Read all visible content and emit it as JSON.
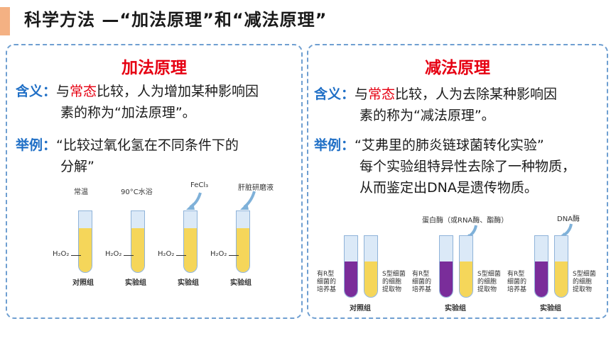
{
  "header": {
    "title": "科学方法 —“加法原理”和“减法原理”"
  },
  "left": {
    "title": "加法原理",
    "meaning_label": "含义：",
    "meaning_pre": "与",
    "meaning_hl": "常态",
    "meaning_post": "比较，人为增加某种影响因",
    "meaning_line2": "素的称为“加法原理”。",
    "example_label": "举例：",
    "example_line1": "“比较过氧化氢在不同条件下的",
    "example_line2": "分解”",
    "figure": {
      "conditions": [
        "常温",
        "90°C水浴",
        "FeCl₃",
        "肝脏研磨液"
      ],
      "reagent": "H₂O₂",
      "groups": [
        "对照组",
        "实验组",
        "实验组",
        "实验组"
      ]
    }
  },
  "right": {
    "title": "减法原理",
    "meaning_label": "含义：",
    "meaning_pre": "与",
    "meaning_hl": "常态",
    "meaning_post": "比较，人为去除某种影响因",
    "meaning_line2": "素的称为“减法原理”。",
    "example_label": "举例：",
    "example_line1": "“艾弗里的肺炎链球菌转化实验”",
    "example_line2": "每个实验组特异性去除了一种物质，",
    "example_line3": "从而鉴定出DNA是遗传物质。",
    "figure": {
      "enzyme1": "蛋白酶（或RNA酶、酯酶）",
      "enzyme2": "DNA酶",
      "tube_left_label": [
        "有R型",
        "细菌的",
        "培养基"
      ],
      "tube_right_label": [
        "S型细菌",
        "的细胞",
        "提取物"
      ],
      "groups": [
        "对照组",
        "实验组",
        "实验组"
      ]
    }
  },
  "colors": {
    "accent": "#f4b183",
    "blue": "#1f6fc6",
    "red": "#e60012",
    "border": "#6f9fd1"
  }
}
